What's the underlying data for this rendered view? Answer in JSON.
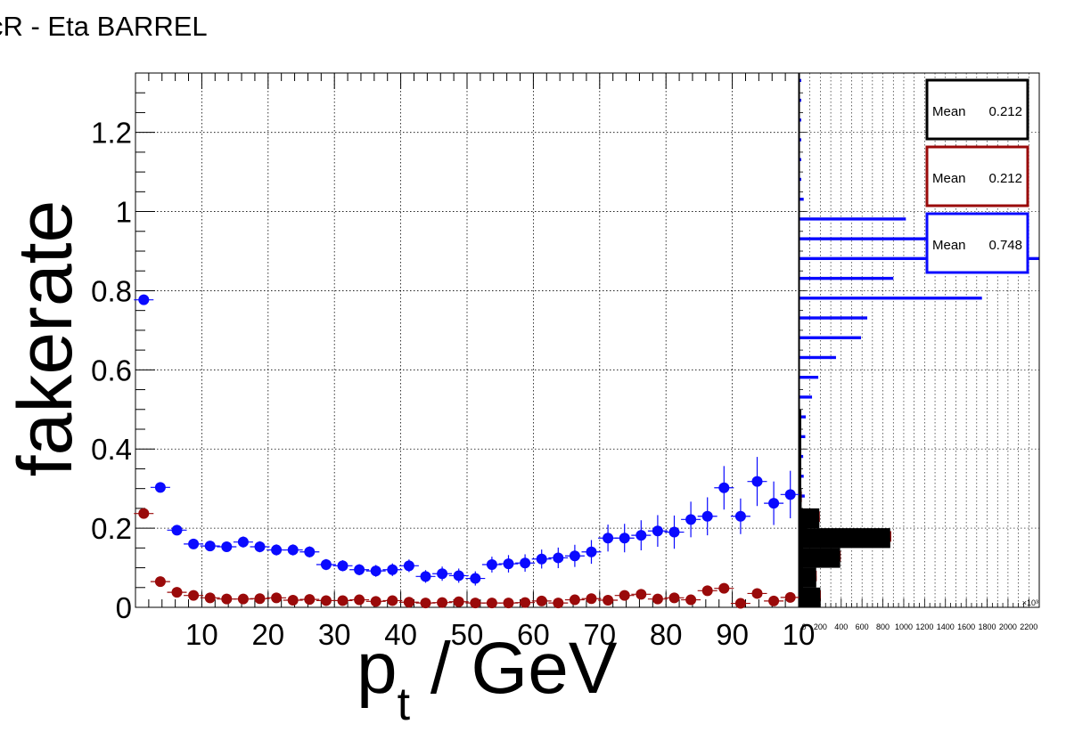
{
  "chart_data": [
    {
      "type": "scatter",
      "title": "cR - Eta BARREL",
      "xlabel": "p",
      "xlabel_sub": "t",
      "xlabel_suffix": " / GeV",
      "ylabel": "fakerate",
      "xlim": [
        0,
        100
      ],
      "ylim": [
        0,
        1.35
      ],
      "x_ticks": [
        "10",
        "20",
        "30",
        "40",
        "50",
        "60",
        "70",
        "80",
        "90",
        "10"
      ],
      "y_ticks": [
        "0",
        "0.2",
        "0.4",
        "0.6",
        "0.8",
        "1",
        "1.2"
      ],
      "grid": true,
      "colors": {
        "blue": "#0a0aff",
        "red": "#9a0a0a",
        "black": "#000000"
      },
      "series": [
        {
          "color_key": "blue",
          "x": [
            1.25,
            3.75,
            6.25,
            8.75,
            11.25,
            13.75,
            16.25,
            18.75,
            21.25,
            23.75,
            26.25,
            28.75,
            31.25,
            33.75,
            36.25,
            38.75,
            41.25,
            43.75,
            46.25,
            48.75,
            51.25,
            53.75,
            56.25,
            58.75,
            61.25,
            63.75,
            66.25,
            68.75,
            71.25,
            73.75,
            76.25,
            78.75,
            81.25,
            83.75,
            86.25,
            88.75,
            91.25,
            93.75,
            96.25,
            98.75
          ],
          "y": [
            0.777,
            0.303,
            0.195,
            0.16,
            0.155,
            0.153,
            0.165,
            0.153,
            0.145,
            0.145,
            0.14,
            0.108,
            0.105,
            0.095,
            0.092,
            0.095,
            0.105,
            0.078,
            0.085,
            0.08,
            0.073,
            0.108,
            0.11,
            0.112,
            0.122,
            0.125,
            0.13,
            0.14,
            0.175,
            0.175,
            0.182,
            0.193,
            0.19,
            0.222,
            0.23,
            0.302,
            0.23,
            0.318,
            0.263,
            0.285
          ],
          "yerr": [
            0.005,
            0.012,
            0.012,
            0.012,
            0.012,
            0.012,
            0.014,
            0.014,
            0.014,
            0.014,
            0.014,
            0.014,
            0.014,
            0.014,
            0.015,
            0.016,
            0.016,
            0.016,
            0.018,
            0.018,
            0.018,
            0.02,
            0.022,
            0.022,
            0.024,
            0.026,
            0.028,
            0.03,
            0.034,
            0.036,
            0.038,
            0.04,
            0.042,
            0.045,
            0.048,
            0.055,
            0.045,
            0.062,
            0.055,
            0.06
          ]
        },
        {
          "color_key": "red",
          "x": [
            1.25,
            3.75,
            6.25,
            8.75,
            11.25,
            13.75,
            16.25,
            18.75,
            21.25,
            23.75,
            26.25,
            28.75,
            31.25,
            33.75,
            36.25,
            38.75,
            41.25,
            43.75,
            46.25,
            48.75,
            51.25,
            53.75,
            56.25,
            58.75,
            61.25,
            63.75,
            66.25,
            68.75,
            71.25,
            73.75,
            76.25,
            78.75,
            81.25,
            83.75,
            86.25,
            88.75,
            91.25,
            93.75,
            96.25,
            98.75
          ],
          "y": [
            0.237,
            0.065,
            0.038,
            0.03,
            0.024,
            0.021,
            0.021,
            0.022,
            0.024,
            0.018,
            0.02,
            0.017,
            0.017,
            0.019,
            0.015,
            0.017,
            0.013,
            0.011,
            0.012,
            0.014,
            0.011,
            0.011,
            0.011,
            0.012,
            0.016,
            0.011,
            0.019,
            0.022,
            0.018,
            0.03,
            0.033,
            0.021,
            0.024,
            0.019,
            0.042,
            0.048,
            0.01,
            0.035,
            0.016,
            0.025
          ],
          "yerr": [
            0.004,
            0.005,
            0.005,
            0.005,
            0.005,
            0.005,
            0.005,
            0.005,
            0.005,
            0.005,
            0.005,
            0.005,
            0.005,
            0.005,
            0.005,
            0.005,
            0.005,
            0.005,
            0.005,
            0.005,
            0.005,
            0.005,
            0.005,
            0.005,
            0.006,
            0.006,
            0.006,
            0.007,
            0.007,
            0.008,
            0.008,
            0.008,
            0.009,
            0.009,
            0.01,
            0.012,
            0.01,
            0.012,
            0.012,
            0.012
          ]
        }
      ]
    },
    {
      "type": "bar",
      "orientation": "horizontal",
      "x_ticks": [
        "0",
        "200",
        "400",
        "600",
        "800",
        "1000",
        "1200",
        "1400",
        "1600",
        "1800",
        "2000",
        "2200"
      ],
      "x_exponent_label": "×10³",
      "xlim": [
        0,
        2300
      ],
      "bin_width": 0.05,
      "series": [
        {
          "color_key": "black",
          "bin_lows": [
            0.0,
            0.05,
            0.1,
            0.15,
            0.2,
            0.25,
            0.3,
            0.35,
            0.4,
            0.45
          ],
          "values": [
            200,
            160,
            390,
            870,
            190,
            20,
            10,
            2,
            1,
            1
          ]
        },
        {
          "color_key": "red",
          "bin_lows": [
            0.0,
            0.05,
            0.1,
            0.15,
            0.2,
            0.25,
            0.3,
            0.35,
            0.4,
            0.45
          ],
          "values": [
            205,
            165,
            395,
            880,
            195,
            22,
            10,
            3,
            1,
            1
          ]
        },
        {
          "color_key": "blue",
          "bin_lows": [
            0.0,
            0.05,
            0.1,
            0.15,
            0.2,
            0.25,
            0.3,
            0.35,
            0.4,
            0.45,
            0.5,
            0.55,
            0.6,
            0.65,
            0.7,
            0.75,
            0.8,
            0.85,
            0.9,
            0.95,
            1.0,
            1.05,
            1.1,
            1.15,
            1.2,
            1.25,
            1.3
          ],
          "values": [
            20,
            25,
            40,
            30,
            35,
            50,
            40,
            35,
            55,
            60,
            120,
            180,
            350,
            590,
            650,
            1750,
            900,
            2300,
            1350,
            1020,
            40,
            15,
            12,
            10,
            8,
            6,
            5
          ]
        }
      ],
      "stat_boxes": [
        {
          "label": "Mean",
          "value": "0.212",
          "color_key": "black"
        },
        {
          "label": "Mean",
          "value": "0.212",
          "color_key": "red"
        },
        {
          "label": "Mean",
          "value": "0.748",
          "color_key": "blue"
        }
      ]
    }
  ]
}
